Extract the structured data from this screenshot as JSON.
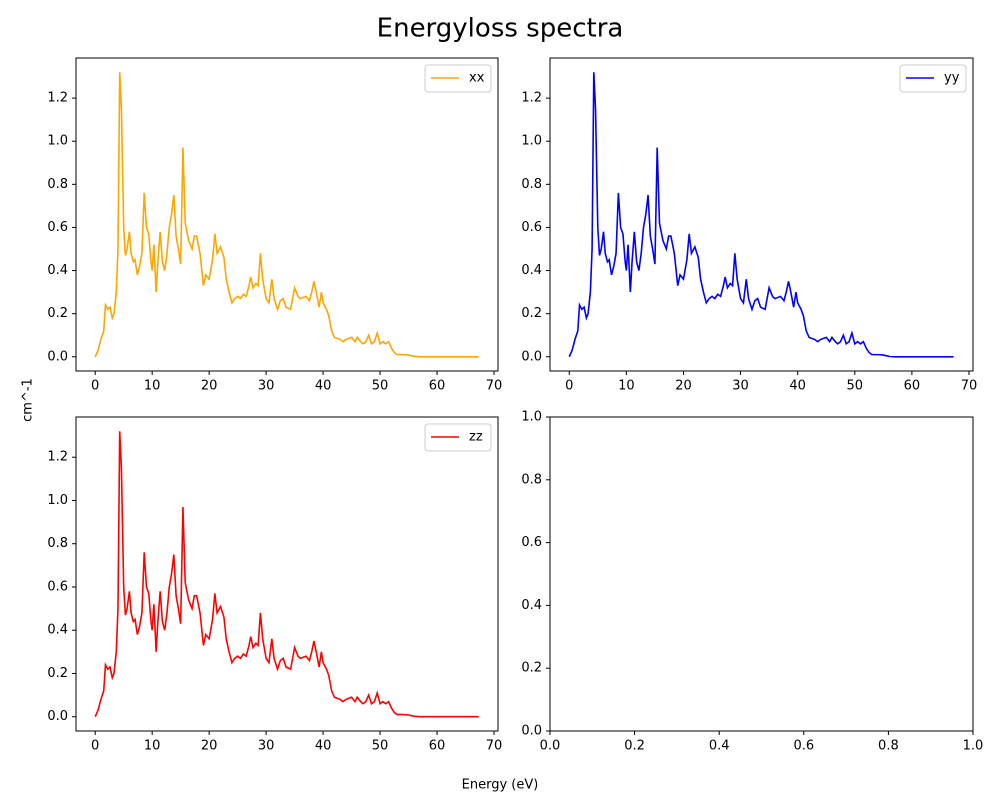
{
  "title": "Energyloss spectra",
  "xlabel": "Energy (eV)",
  "ylabel": "cm^-1",
  "chart_data": [
    {
      "type": "line",
      "legend": "upper right",
      "x": [
        0,
        0.5,
        1,
        1.5,
        1.8,
        2.2,
        2.6,
        3,
        3.3,
        3.7,
        4,
        4.3,
        4.6,
        5,
        5.3,
        5.6,
        6,
        6.3,
        6.7,
        7,
        7.4,
        7.8,
        8.2,
        8.6,
        9,
        9.4,
        9.8,
        10,
        10.3,
        10.7,
        11,
        11.4,
        11.8,
        12.2,
        12.6,
        13,
        13.4,
        13.8,
        14.2,
        14.6,
        15,
        15.4,
        15.8,
        16.4,
        17,
        17.4,
        17.8,
        18.4,
        19,
        19.4,
        20,
        20.6,
        21,
        21.4,
        22,
        22.6,
        23,
        23.5,
        24,
        24.5,
        25,
        25.5,
        26,
        26.5,
        27,
        27.3,
        27.7,
        28.2,
        28.6,
        29,
        29.4,
        30,
        30.5,
        31,
        31.4,
        32,
        32.5,
        33,
        33.5,
        34.3,
        35,
        35.6,
        36,
        37,
        37.6,
        38,
        38.4,
        38.8,
        39.3,
        39.7,
        40,
        40.6,
        41,
        41.5,
        42,
        43,
        43.5,
        44,
        45,
        45.6,
        46,
        46.6,
        47,
        47.5,
        48,
        48.5,
        49,
        49.5,
        50,
        50.5,
        51,
        51.5,
        52,
        52.5,
        53,
        54,
        55,
        56,
        57,
        60,
        67.3
      ],
      "series": [
        {
          "name": "xx",
          "color": "#ffa500",
          "values": [
            0,
            0.03,
            0.08,
            0.12,
            0.24,
            0.22,
            0.23,
            0.18,
            0.2,
            0.3,
            0.5,
            1.32,
            1.15,
            0.6,
            0.47,
            0.5,
            0.58,
            0.48,
            0.44,
            0.45,
            0.38,
            0.42,
            0.48,
            0.76,
            0.6,
            0.57,
            0.44,
            0.4,
            0.52,
            0.3,
            0.44,
            0.58,
            0.44,
            0.4,
            0.48,
            0.6,
            0.66,
            0.75,
            0.56,
            0.5,
            0.43,
            0.97,
            0.62,
            0.54,
            0.5,
            0.56,
            0.56,
            0.48,
            0.33,
            0.38,
            0.36,
            0.45,
            0.57,
            0.48,
            0.51,
            0.46,
            0.36,
            0.3,
            0.25,
            0.27,
            0.28,
            0.27,
            0.29,
            0.28,
            0.33,
            0.37,
            0.32,
            0.34,
            0.33,
            0.48,
            0.36,
            0.27,
            0.25,
            0.36,
            0.27,
            0.22,
            0.26,
            0.27,
            0.23,
            0.22,
            0.32,
            0.28,
            0.27,
            0.28,
            0.26,
            0.3,
            0.35,
            0.3,
            0.23,
            0.3,
            0.25,
            0.22,
            0.19,
            0.12,
            0.09,
            0.08,
            0.07,
            0.08,
            0.09,
            0.07,
            0.09,
            0.07,
            0.06,
            0.07,
            0.1,
            0.06,
            0.07,
            0.11,
            0.06,
            0.07,
            0.06,
            0.07,
            0.04,
            0.02,
            0.01,
            0.01,
            0.008,
            0.002,
            0,
            0,
            0
          ]
        }
      ],
      "xlim": [
        -3.37,
        70.7
      ],
      "xticks": [
        0,
        10,
        20,
        30,
        40,
        50,
        60,
        70
      ],
      "ylim": [
        -0.066,
        1.386
      ],
      "yticks": [
        {
          "value": 0,
          "label": "0.0"
        },
        0.2,
        0.4,
        0.6,
        0.8,
        {
          "value": 1,
          "label": "1.0"
        },
        1.2
      ]
    },
    {
      "type": "line",
      "legend": "upper right",
      "x": [
        0,
        0.5,
        1,
        1.5,
        1.8,
        2.2,
        2.6,
        3,
        3.3,
        3.7,
        4,
        4.3,
        4.6,
        5,
        5.3,
        5.6,
        6,
        6.3,
        6.7,
        7,
        7.4,
        7.8,
        8.2,
        8.6,
        9,
        9.4,
        9.8,
        10,
        10.3,
        10.7,
        11,
        11.4,
        11.8,
        12.2,
        12.6,
        13,
        13.4,
        13.8,
        14.2,
        14.6,
        15,
        15.4,
        15.8,
        16.4,
        17,
        17.4,
        17.8,
        18.4,
        19,
        19.4,
        20,
        20.6,
        21,
        21.4,
        22,
        22.6,
        23,
        23.5,
        24,
        24.5,
        25,
        25.5,
        26,
        26.5,
        27,
        27.3,
        27.7,
        28.2,
        28.6,
        29,
        29.4,
        30,
        30.5,
        31,
        31.4,
        32,
        32.5,
        33,
        33.5,
        34.3,
        35,
        35.6,
        36,
        37,
        37.6,
        38,
        38.4,
        38.8,
        39.3,
        39.7,
        40,
        40.6,
        41,
        41.5,
        42,
        43,
        43.5,
        44,
        45,
        45.6,
        46,
        46.6,
        47,
        47.5,
        48,
        48.5,
        49,
        49.5,
        50,
        50.5,
        51,
        51.5,
        52,
        52.5,
        53,
        54,
        55,
        56,
        57,
        60,
        67.3
      ],
      "series": [
        {
          "name": "yy",
          "color": "#0000ff",
          "values": [
            0,
            0.03,
            0.08,
            0.12,
            0.24,
            0.22,
            0.23,
            0.18,
            0.2,
            0.3,
            0.5,
            1.32,
            1.15,
            0.6,
            0.47,
            0.5,
            0.58,
            0.48,
            0.44,
            0.45,
            0.38,
            0.42,
            0.48,
            0.76,
            0.6,
            0.57,
            0.44,
            0.4,
            0.52,
            0.3,
            0.44,
            0.58,
            0.44,
            0.4,
            0.48,
            0.6,
            0.66,
            0.75,
            0.56,
            0.5,
            0.43,
            0.97,
            0.62,
            0.54,
            0.5,
            0.56,
            0.56,
            0.48,
            0.33,
            0.38,
            0.36,
            0.45,
            0.57,
            0.48,
            0.51,
            0.46,
            0.36,
            0.3,
            0.25,
            0.27,
            0.28,
            0.27,
            0.29,
            0.28,
            0.33,
            0.37,
            0.32,
            0.34,
            0.33,
            0.48,
            0.36,
            0.27,
            0.25,
            0.36,
            0.27,
            0.22,
            0.26,
            0.27,
            0.23,
            0.22,
            0.32,
            0.28,
            0.27,
            0.28,
            0.26,
            0.3,
            0.35,
            0.3,
            0.23,
            0.3,
            0.25,
            0.22,
            0.19,
            0.12,
            0.09,
            0.08,
            0.07,
            0.08,
            0.09,
            0.07,
            0.09,
            0.07,
            0.06,
            0.07,
            0.1,
            0.06,
            0.07,
            0.11,
            0.06,
            0.07,
            0.06,
            0.07,
            0.04,
            0.02,
            0.01,
            0.01,
            0.008,
            0.002,
            0,
            0,
            0
          ]
        }
      ],
      "xlim": [
        -3.37,
        70.7
      ],
      "xticks": [
        0,
        10,
        20,
        30,
        40,
        50,
        60,
        70
      ],
      "ylim": [
        -0.066,
        1.386
      ],
      "yticks": [
        {
          "value": 0,
          "label": "0.0"
        },
        0.2,
        0.4,
        0.6,
        0.8,
        {
          "value": 1,
          "label": "1.0"
        },
        1.2
      ]
    },
    {
      "type": "line",
      "legend": "upper right",
      "x": [
        0,
        0.5,
        1,
        1.5,
        1.8,
        2.2,
        2.6,
        3,
        3.3,
        3.7,
        4,
        4.3,
        4.6,
        5,
        5.3,
        5.6,
        6,
        6.3,
        6.7,
        7,
        7.4,
        7.8,
        8.2,
        8.6,
        9,
        9.4,
        9.8,
        10,
        10.3,
        10.7,
        11,
        11.4,
        11.8,
        12.2,
        12.6,
        13,
        13.4,
        13.8,
        14.2,
        14.6,
        15,
        15.4,
        15.8,
        16.4,
        17,
        17.4,
        17.8,
        18.4,
        19,
        19.4,
        20,
        20.6,
        21,
        21.4,
        22,
        22.6,
        23,
        23.5,
        24,
        24.5,
        25,
        25.5,
        26,
        26.5,
        27,
        27.3,
        27.7,
        28.2,
        28.6,
        29,
        29.4,
        30,
        30.5,
        31,
        31.4,
        32,
        32.5,
        33,
        33.5,
        34.3,
        35,
        35.6,
        36,
        37,
        37.6,
        38,
        38.4,
        38.8,
        39.3,
        39.7,
        40,
        40.6,
        41,
        41.5,
        42,
        43,
        43.5,
        44,
        45,
        45.6,
        46,
        46.6,
        47,
        47.5,
        48,
        48.5,
        49,
        49.5,
        50,
        50.5,
        51,
        51.5,
        52,
        52.5,
        53,
        54,
        55,
        56,
        57,
        60,
        67.3
      ],
      "series": [
        {
          "name": "zz",
          "color": "#ff0000",
          "values": [
            0,
            0.03,
            0.08,
            0.12,
            0.24,
            0.22,
            0.23,
            0.18,
            0.2,
            0.3,
            0.5,
            1.32,
            1.15,
            0.6,
            0.47,
            0.5,
            0.58,
            0.48,
            0.44,
            0.45,
            0.38,
            0.42,
            0.48,
            0.76,
            0.6,
            0.57,
            0.44,
            0.4,
            0.52,
            0.3,
            0.44,
            0.58,
            0.44,
            0.4,
            0.48,
            0.6,
            0.66,
            0.75,
            0.56,
            0.5,
            0.43,
            0.97,
            0.62,
            0.54,
            0.5,
            0.56,
            0.56,
            0.48,
            0.33,
            0.38,
            0.36,
            0.45,
            0.57,
            0.48,
            0.51,
            0.46,
            0.36,
            0.3,
            0.25,
            0.27,
            0.28,
            0.27,
            0.29,
            0.28,
            0.33,
            0.37,
            0.32,
            0.34,
            0.33,
            0.48,
            0.36,
            0.27,
            0.25,
            0.36,
            0.27,
            0.22,
            0.26,
            0.27,
            0.23,
            0.22,
            0.32,
            0.28,
            0.27,
            0.28,
            0.26,
            0.3,
            0.35,
            0.3,
            0.23,
            0.3,
            0.25,
            0.22,
            0.19,
            0.12,
            0.09,
            0.08,
            0.07,
            0.08,
            0.09,
            0.07,
            0.09,
            0.07,
            0.06,
            0.07,
            0.1,
            0.06,
            0.07,
            0.11,
            0.06,
            0.07,
            0.06,
            0.07,
            0.04,
            0.02,
            0.01,
            0.01,
            0.008,
            0.002,
            0,
            0,
            0
          ]
        }
      ],
      "xlim": [
        -3.37,
        70.7
      ],
      "xticks": [
        0,
        10,
        20,
        30,
        40,
        50,
        60,
        70
      ],
      "ylim": [
        -0.066,
        1.386
      ],
      "yticks": [
        {
          "value": 0,
          "label": "0.0"
        },
        0.2,
        0.4,
        0.6,
        0.8,
        {
          "value": 1,
          "label": "1.0"
        },
        1.2
      ]
    },
    {
      "type": "line",
      "series": [],
      "xlim": [
        0,
        1
      ],
      "xticks": [
        {
          "value": 0,
          "label": "0.0"
        },
        0.2,
        0.4,
        0.6,
        0.8,
        {
          "value": 1,
          "label": "1.0"
        }
      ],
      "ylim": [
        0,
        1
      ],
      "yticks": [
        {
          "value": 0,
          "label": "0.0"
        },
        0.2,
        0.4,
        0.6,
        0.8,
        {
          "value": 1,
          "label": "1.0"
        }
      ]
    }
  ]
}
